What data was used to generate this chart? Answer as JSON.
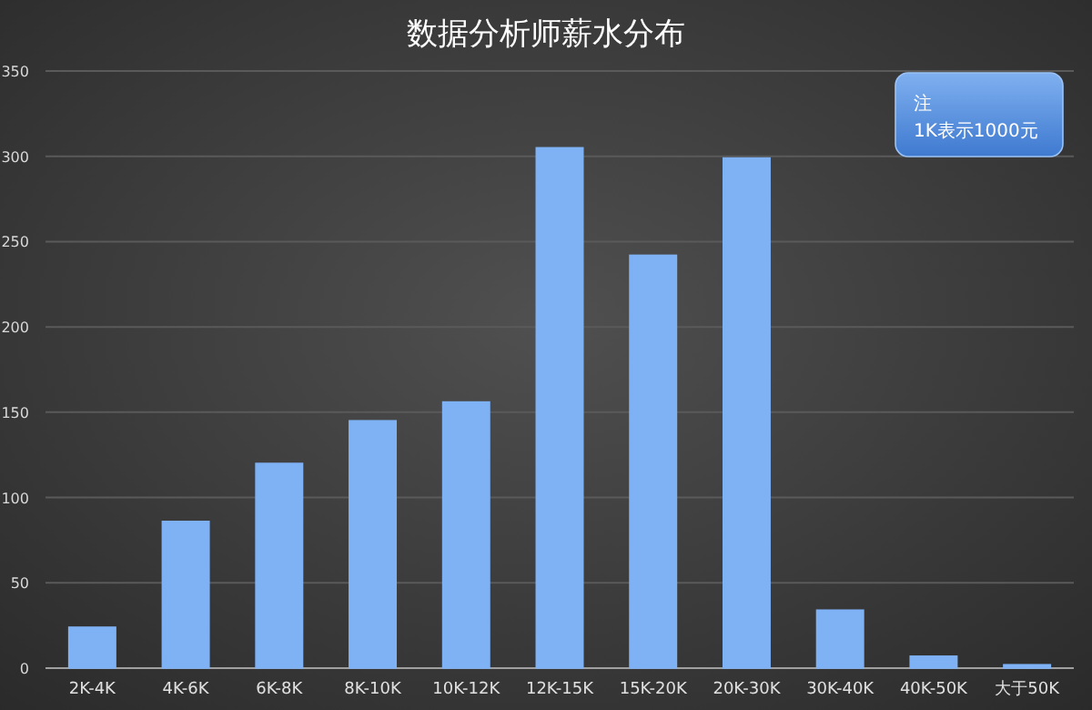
{
  "chart_data": {
    "type": "bar",
    "title": "数据分析师薪水分布",
    "categories": [
      "2K-4K",
      "4K-6K",
      "6K-8K",
      "8K-10K",
      "10K-12K",
      "12K-15K",
      "15K-20K",
      "20K-30K",
      "30K-40K",
      "40K-50K",
      "大于50K"
    ],
    "values": [
      24,
      86,
      120,
      145,
      156,
      305,
      242,
      299,
      34,
      7,
      2
    ],
    "color": "#7fb2f5",
    "ylim": [
      0,
      350
    ],
    "yticks": [
      0,
      50,
      100,
      150,
      200,
      250,
      300,
      350
    ],
    "grid": "y",
    "annotations": [
      "注\n1K表示1000元"
    ]
  }
}
